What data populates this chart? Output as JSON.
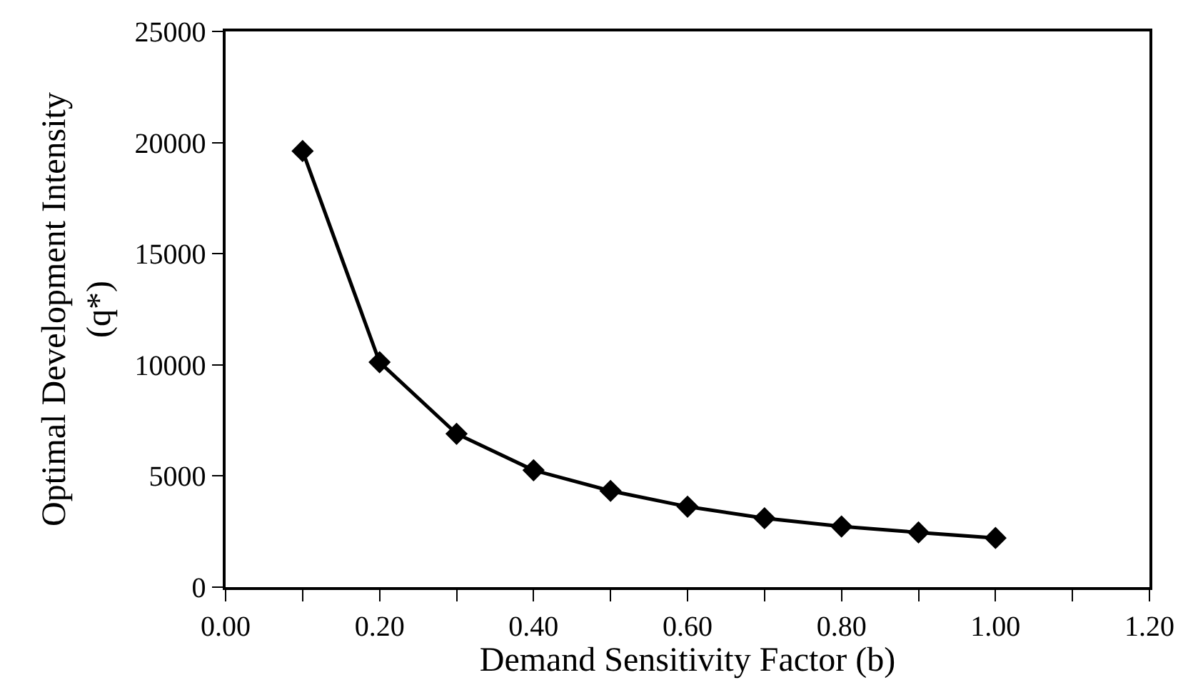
{
  "chart_data": {
    "type": "line",
    "xlabel": "Demand Sensitivity Factor (b)",
    "ylabel": "Optimal Development Intensity\n(q*)",
    "x": [
      0.1,
      0.2,
      0.3,
      0.4,
      0.5,
      0.6,
      0.7,
      0.8,
      0.9,
      1.0
    ],
    "series": [
      {
        "color": "#000000",
        "values": [
          19620,
          10120,
          6900,
          5260,
          4330,
          3620,
          3100,
          2730,
          2460,
          2210
        ]
      }
    ],
    "xlim": [
      0,
      1.2
    ],
    "xticks": [
      {
        "value": 0,
        "label": "0.00"
      },
      {
        "value": 0.1,
        "label": null
      },
      {
        "value": 0.2,
        "label": "0.20"
      },
      {
        "value": 0.3,
        "label": null
      },
      {
        "value": 0.4,
        "label": "0.40"
      },
      {
        "value": 0.5,
        "label": null
      },
      {
        "value": 0.6,
        "label": "0.60"
      },
      {
        "value": 0.7,
        "label": null
      },
      {
        "value": 0.8,
        "label": "0.80"
      },
      {
        "value": 0.9,
        "label": null
      },
      {
        "value": 1.0,
        "label": "1.00"
      },
      {
        "value": 1.1,
        "label": null
      },
      {
        "value": 1.2,
        "label": "1.20"
      }
    ],
    "ylim": [
      0,
      25000
    ],
    "yticks": [
      0,
      5000,
      10000,
      15000,
      20000,
      25000
    ],
    "legend": false,
    "marker": "diamond",
    "line_style": "solid"
  }
}
